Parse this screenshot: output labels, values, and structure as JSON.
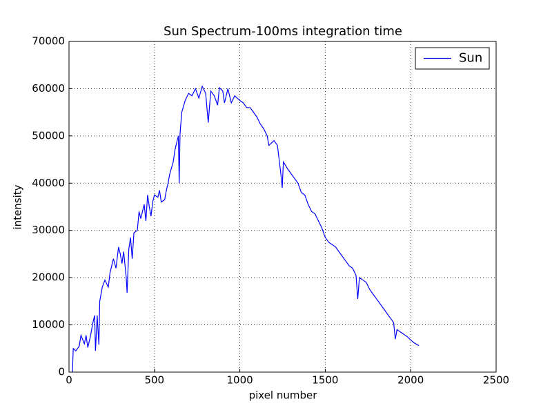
{
  "chart_data": {
    "type": "line",
    "title": "Sun Spectrum-100ms integration time",
    "x_label": "pixel number",
    "y_label": "intensity",
    "xlim": [
      0,
      2500
    ],
    "xticks": [
      0,
      500,
      1000,
      1500,
      2000,
      2500
    ],
    "ylim": [
      0,
      70000
    ],
    "yticks": [
      0,
      10000,
      20000,
      30000,
      40000,
      50000,
      60000,
      70000
    ],
    "grid": true,
    "legend": "upper right",
    "x": [
      20,
      25,
      40,
      60,
      70,
      90,
      100,
      110,
      125,
      140,
      150,
      155,
      165,
      175,
      180,
      195,
      210,
      230,
      240,
      260,
      275,
      290,
      300,
      310,
      320,
      335,
      340,
      350,
      360,
      370,
      380,
      400,
      410,
      420,
      440,
      450,
      460,
      470,
      480,
      490,
      500,
      520,
      530,
      540,
      560,
      570,
      580,
      590,
      610,
      620,
      630,
      640,
      645,
      650,
      660,
      680,
      700,
      720,
      740,
      760,
      780,
      800,
      815,
      830,
      850,
      870,
      880,
      900,
      910,
      930,
      950,
      970,
      1000,
      1020,
      1040,
      1060,
      1080,
      1100,
      1120,
      1140,
      1160,
      1170,
      1200,
      1220,
      1240,
      1248,
      1255,
      1280,
      1300,
      1320,
      1340,
      1360,
      1380,
      1400,
      1420,
      1440,
      1460,
      1480,
      1500,
      1520,
      1540,
      1560,
      1580,
      1600,
      1620,
      1640,
      1660,
      1680,
      1690,
      1700,
      1720,
      1740,
      1760,
      1780,
      1800,
      1820,
      1840,
      1860,
      1880,
      1900,
      1910,
      1920,
      1940,
      1960,
      1980,
      2000,
      2020,
      2048
    ],
    "series": [
      {
        "name": "Sun",
        "color": "#0000ff",
        "values": [
          0,
          5000,
          4500,
          5500,
          7800,
          6000,
          7800,
          5200,
          7500,
          10500,
          12000,
          4500,
          12000,
          5800,
          15000,
          18000,
          19500,
          18000,
          21000,
          24000,
          22000,
          26500,
          25000,
          23000,
          25500,
          20000,
          16800,
          26000,
          28500,
          24000,
          29500,
          30000,
          34000,
          32500,
          35500,
          32000,
          37500,
          35000,
          33000,
          36000,
          37500,
          37000,
          38500,
          36000,
          36500,
          38500,
          40000,
          42000,
          44500,
          47000,
          48500,
          50000,
          40000,
          50500,
          55000,
          57500,
          59000,
          58500,
          60000,
          58000,
          60500,
          59000,
          52800,
          59500,
          58500,
          56500,
          60200,
          59500,
          57000,
          60000,
          57000,
          58500,
          57500,
          57000,
          56000,
          56000,
          55000,
          54000,
          52500,
          51500,
          50000,
          48000,
          49000,
          48000,
          42000,
          39000,
          44500,
          43000,
          42000,
          41000,
          40000,
          38000,
          37500,
          35500,
          34000,
          33500,
          32000,
          30500,
          28500,
          27500,
          27000,
          26500,
          25500,
          24500,
          23500,
          22500,
          22000,
          20500,
          15500,
          20000,
          19500,
          19000,
          17500,
          16500,
          15500,
          14500,
          13500,
          12500,
          11500,
          10500,
          7000,
          9000,
          8500,
          8000,
          7500,
          6800,
          6200,
          5600
        ]
      }
    ]
  }
}
